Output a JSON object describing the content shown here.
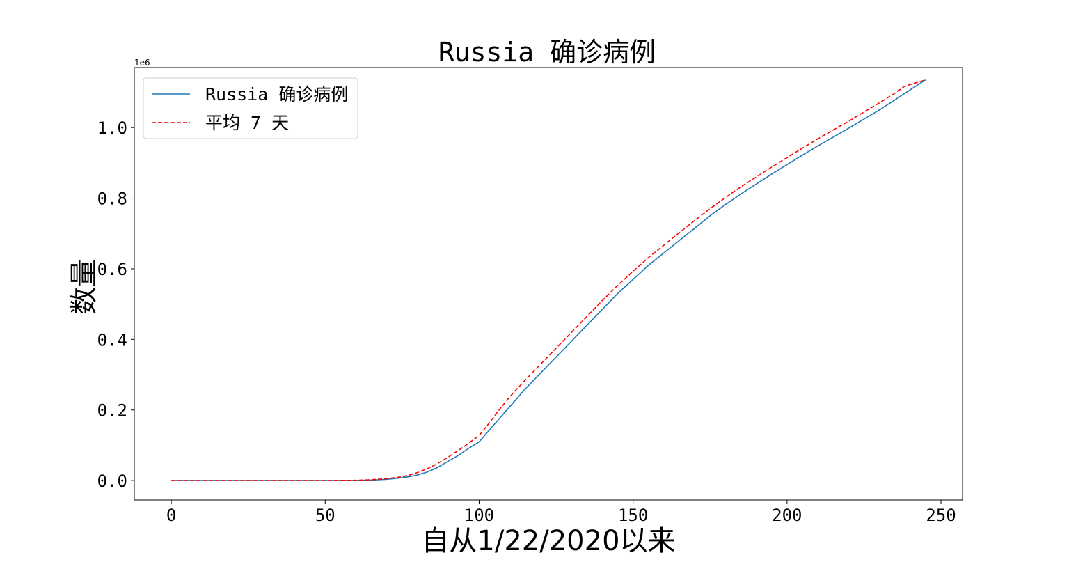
{
  "chart_data": {
    "type": "line",
    "title": "Russia 确诊病例",
    "xlabel": "自从1/22/2020以来",
    "ylabel": "数量",
    "y_offset_label": "1e6",
    "xlim": [
      -12,
      257
    ],
    "ylim": [
      -55000,
      1170000
    ],
    "x_ticks": [
      0,
      50,
      100,
      150,
      200,
      250
    ],
    "x_tick_labels": [
      "0",
      "50",
      "100",
      "150",
      "200",
      "250"
    ],
    "y_ticks": [
      0,
      200000,
      400000,
      600000,
      800000,
      1000000
    ],
    "y_tick_labels": [
      "0.0",
      "0.2",
      "0.4",
      "0.6",
      "0.8",
      "1.0"
    ],
    "grid": false,
    "legend_position": "top-left",
    "series": [
      {
        "name": "Russia 确诊病例",
        "color": "#1f77b4",
        "style": "solid",
        "points": [
          [
            0,
            0
          ],
          [
            50,
            0
          ],
          [
            60,
            500
          ],
          [
            65,
            1500
          ],
          [
            70,
            3500
          ],
          [
            75,
            8000
          ],
          [
            78,
            12000
          ],
          [
            80,
            16000
          ],
          [
            83,
            24000
          ],
          [
            86,
            35000
          ],
          [
            88,
            45000
          ],
          [
            90,
            55000
          ],
          [
            93,
            70000
          ],
          [
            96,
            88000
          ],
          [
            100,
            110000
          ],
          [
            103,
            140000
          ],
          [
            106,
            170000
          ],
          [
            110,
            210000
          ],
          [
            115,
            260000
          ],
          [
            120,
            305000
          ],
          [
            125,
            350000
          ],
          [
            130,
            395000
          ],
          [
            135,
            440000
          ],
          [
            140,
            485000
          ],
          [
            145,
            530000
          ],
          [
            150,
            570000
          ],
          [
            155,
            610000
          ],
          [
            160,
            645000
          ],
          [
            165,
            680000
          ],
          [
            170,
            715000
          ],
          [
            175,
            750000
          ],
          [
            180,
            782000
          ],
          [
            185,
            812000
          ],
          [
            190,
            840000
          ],
          [
            195,
            868000
          ],
          [
            200,
            895000
          ],
          [
            205,
            922000
          ],
          [
            210,
            948000
          ],
          [
            215,
            973000
          ],
          [
            220,
            998000
          ],
          [
            225,
            1024000
          ],
          [
            230,
            1050000
          ],
          [
            235,
            1078000
          ],
          [
            240,
            1107000
          ],
          [
            245,
            1135000
          ]
        ]
      },
      {
        "name": "平均 7 天",
        "color": "#ff0000",
        "style": "dashed",
        "points": [
          [
            0,
            0
          ],
          [
            50,
            0
          ],
          [
            60,
            800
          ],
          [
            65,
            2500
          ],
          [
            70,
            5500
          ],
          [
            75,
            11000
          ],
          [
            78,
            17000
          ],
          [
            80,
            23000
          ],
          [
            83,
            33000
          ],
          [
            86,
            46000
          ],
          [
            88,
            56000
          ],
          [
            90,
            67000
          ],
          [
            93,
            84000
          ],
          [
            96,
            102000
          ],
          [
            100,
            128000
          ],
          [
            103,
            160000
          ],
          [
            106,
            195000
          ],
          [
            110,
            238000
          ],
          [
            115,
            285000
          ],
          [
            120,
            330000
          ],
          [
            125,
            375000
          ],
          [
            130,
            420000
          ],
          [
            135,
            465000
          ],
          [
            140,
            510000
          ],
          [
            145,
            553000
          ],
          [
            150,
            593000
          ],
          [
            155,
            632000
          ],
          [
            160,
            667000
          ],
          [
            165,
            702000
          ],
          [
            170,
            737000
          ],
          [
            175,
            770000
          ],
          [
            180,
            802000
          ],
          [
            185,
            832000
          ],
          [
            190,
            860000
          ],
          [
            195,
            888000
          ],
          [
            200,
            915000
          ],
          [
            205,
            942000
          ],
          [
            210,
            968000
          ],
          [
            215,
            993000
          ],
          [
            220,
            1018000
          ],
          [
            225,
            1044000
          ],
          [
            230,
            1070000
          ],
          [
            235,
            1097000
          ],
          [
            238,
            1116000
          ],
          [
            240,
            1122000
          ],
          [
            245,
            1135000
          ]
        ]
      }
    ]
  }
}
